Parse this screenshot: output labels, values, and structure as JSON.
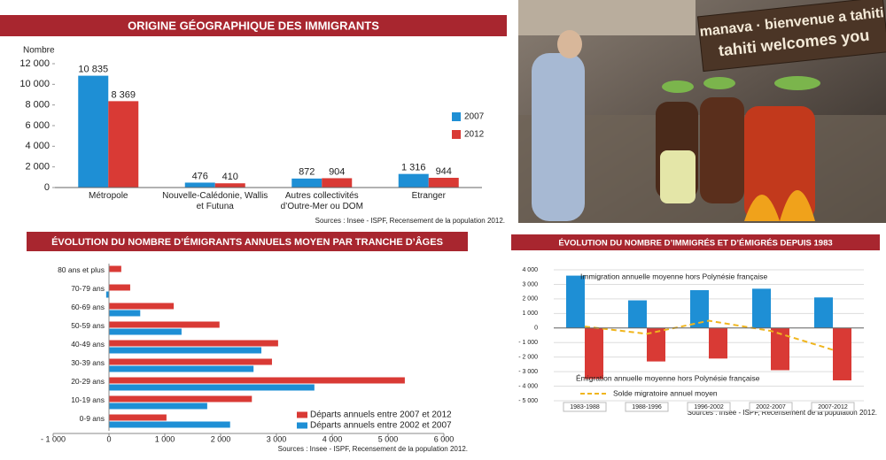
{
  "chart_data": [
    {
      "type": "bar",
      "title": "ORIGINE GÉOGRAPHIQUE DES IMMIGRANTS",
      "y_label": "Nombre",
      "categories": [
        "Métropole",
        "Nouvelle-Calédonie, Wallis et Futuna",
        "Autres collectivités d’Outre-Mer ou DOM",
        "Étranger"
      ],
      "series": [
        {
          "name": "2007",
          "color": "#1e8fd5",
          "values": [
            10835,
            476,
            872,
            1316
          ],
          "value_labels": [
            "10 835",
            "476",
            "872",
            "1 316"
          ]
        },
        {
          "name": "2012",
          "color": "#d93a35",
          "values": [
            8369,
            410,
            904,
            944
          ],
          "value_labels": [
            "8 369",
            "410",
            "904",
            "944"
          ]
        }
      ],
      "ylim": [
        0,
        12000
      ],
      "yticks": [
        0,
        {
          "value": 2000,
          "label": "2 000"
        },
        {
          "value": 4000,
          "label": "4 000"
        },
        {
          "value": 6000,
          "label": "6 000"
        },
        {
          "value": 8000,
          "label": "8 000"
        },
        {
          "value": 10000,
          "label": "10 000"
        },
        {
          "value": 12000,
          "label": "12 000"
        }
      ],
      "grid": false,
      "source": "Sources : Insee - ISPF, Recensement de la population 2012."
    },
    {
      "type": "barh",
      "title": "ÉVOLUTION DU NOMBRE D’ÉMIGRANTS ANNUELS MOYEN PAR TRANCHE D’ÂGES",
      "categories": [
        "80 ans et plus",
        "70-79 ans",
        "60-69 ans",
        "50-59 ans",
        "40-49 ans",
        "30-39 ans",
        "20-29 ans",
        "10-19 ans",
        "0-9 ans"
      ],
      "series": [
        {
          "name": "Départs annuels entre 2007 et 2012",
          "color": "#d93a35",
          "values": [
            220,
            380,
            1160,
            1980,
            3030,
            2920,
            5300,
            2560,
            1030
          ]
        },
        {
          "name": "Départs annuels entre 2002 et 2007",
          "color": "#1e8fd5",
          "values": [
            0,
            -50,
            560,
            1300,
            2730,
            2590,
            3680,
            1760,
            2170
          ]
        }
      ],
      "xlim": [
        -1000,
        6000
      ],
      "xticks": [
        {
          "value": -1000,
          "label": "- 1 000"
        },
        0,
        {
          "value": 1000,
          "label": "1 000"
        },
        {
          "value": 2000,
          "label": "2 000"
        },
        {
          "value": 3000,
          "label": "3 000"
        },
        {
          "value": 4000,
          "label": "4 000"
        },
        {
          "value": 5000,
          "label": "5 000"
        },
        {
          "value": 6000,
          "label": "6 000"
        }
      ],
      "grid": false,
      "source": "Sources : Insee - ISPF, Recensement de la population 2012."
    },
    {
      "type": "bar",
      "title": "ÉVOLUTION DU NOMBRE D’IMMIGRÉS ET D’ÉMIGRÉS DEPUIS 1983",
      "categories": [
        "1983-1988",
        "1988-1996",
        "1996-2002",
        "2002-2007",
        "2007-2012"
      ],
      "series": [
        {
          "name": "Immigration annuelle moyenne hors Polynésie française",
          "color": "#1e8fd5",
          "values": [
            3600,
            1900,
            2600,
            2700,
            2100
          ]
        },
        {
          "name": "Émigration annuelle moyenne hors Polynésie française",
          "color": "#d93a35",
          "values": [
            -3500,
            -2300,
            -2100,
            -2900,
            -3600
          ]
        },
        {
          "name": "Solde migratoire annuel moyen",
          "color": "#f0b51d",
          "type": "line",
          "dashed": true,
          "values": [
            100,
            -400,
            500,
            -200,
            -1500
          ]
        }
      ],
      "ylim": [
        -5000,
        4000
      ],
      "yticks": [
        {
          "value": -5000,
          "label": "- 5 000"
        },
        {
          "value": -4000,
          "label": "- 4 000"
        },
        {
          "value": -3000,
          "label": "- 3 000"
        },
        {
          "value": -2000,
          "label": "- 2 000"
        },
        {
          "value": -1000,
          "label": "- 1 000"
        },
        0,
        {
          "value": 1000,
          "label": "1 000"
        },
        {
          "value": 2000,
          "label": "2 000"
        },
        {
          "value": 3000,
          "label": "3 000"
        },
        {
          "value": 4000,
          "label": "4 000"
        }
      ],
      "grid": true,
      "source": "Sources : Insee - ISPF, Recensement de la population 2012."
    }
  ],
  "photo": {
    "sign": [
      "manava · bienvenue a tahiti",
      "tahiti welcomes you"
    ]
  }
}
